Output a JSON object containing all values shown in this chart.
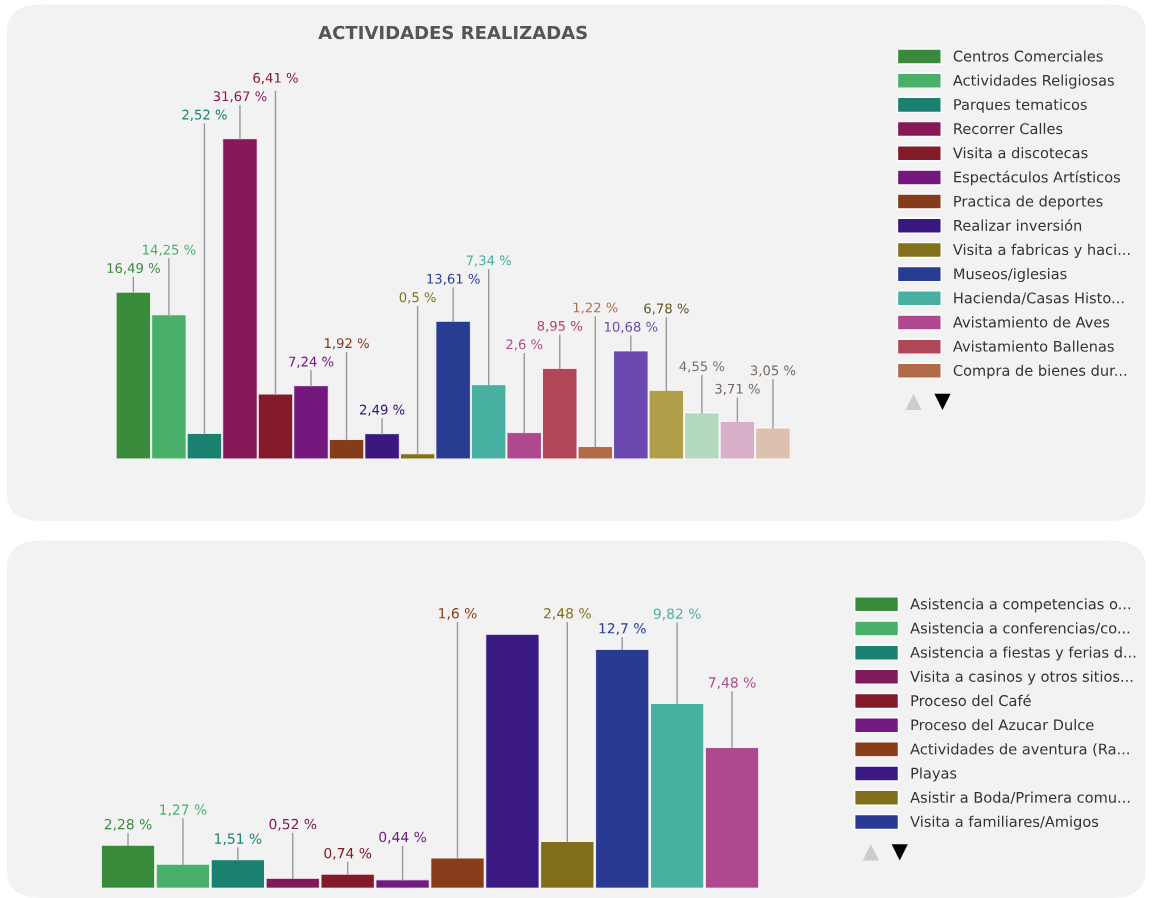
{
  "chart_data": [
    {
      "type": "bar",
      "title": "ACTIVIDADES REALIZADAS",
      "categories": [
        null
      ],
      "legend": "right",
      "series": [
        {
          "name": "Centros Comerciales",
          "color": "#3a8a3c",
          "values": [
            16.49
          ],
          "value_labels": [
            "16,49 %"
          ]
        },
        {
          "name": "Actividades Religiosas",
          "color": "#48b068",
          "values": [
            14.25
          ],
          "value_labels": [
            "14,25 %"
          ]
        },
        {
          "name": "Parques tematicos",
          "color": "#1a8070",
          "values": [
            2.52
          ],
          "value_labels": [
            "2,52 %"
          ]
        },
        {
          "name": "Recorrer Calles",
          "color": "#861858",
          "values": [
            31.67
          ],
          "value_labels": [
            "31,67 %"
          ]
        },
        {
          "name": "Visita a discotecas",
          "color": "#821a2a",
          "values": [
            6.41
          ],
          "value_labels": [
            "6,41 %"
          ]
        },
        {
          "name": "Espectáculos Artísticos",
          "color": "#74187e",
          "values": [
            7.24
          ],
          "value_labels": [
            "7,24 %"
          ]
        },
        {
          "name": "Practica de deportes",
          "color": "#843c1a",
          "values": [
            1.92
          ],
          "value_labels": [
            "1,92 %"
          ]
        },
        {
          "name": "Realizar inversión",
          "color": "#3a1880",
          "values": [
            2.49
          ],
          "value_labels": [
            "2,49 %"
          ]
        },
        {
          "name": "Visita a fabricas y haci...",
          "color": "#82701a",
          "values": [
            0.5
          ],
          "value_labels": [
            "0,5 %"
          ]
        },
        {
          "name": "Museos/iglesias",
          "color": "#283c92",
          "values": [
            13.61
          ],
          "value_labels": [
            "13,61 %"
          ]
        },
        {
          "name": "Hacienda/Casas Histo...",
          "color": "#48b0a0",
          "values": [
            7.34
          ],
          "value_labels": [
            "7,34 %"
          ]
        },
        {
          "name": "Avistamiento de Aves",
          "color": "#b04890",
          "values": [
            2.6
          ],
          "value_labels": [
            "2,6 %"
          ]
        },
        {
          "name": "Avistamiento Ballenas",
          "color": "#b04658",
          "values": [
            8.95
          ],
          "value_labels": [
            "8,95 %"
          ]
        },
        {
          "name": "Compra de bienes dur...",
          "color": "#b06a48",
          "values": [
            1.22
          ],
          "value_labels": [
            "1,22 %"
          ]
        },
        {
          "color": "#6a48b0",
          "values": [
            10.68
          ],
          "value_labels": [
            "10,68 %"
          ]
        },
        {
          "color": "#b09e48",
          "values": [
            6.78
          ],
          "value_labels": [
            "6,78 %"
          ]
        },
        {
          "color": "#b3d9bf",
          "values": [
            4.55
          ],
          "value_labels": [
            "4,55 %"
          ]
        },
        {
          "color": "#d8afc8",
          "values": [
            3.71
          ],
          "value_labels": [
            "3,71 %"
          ]
        },
        {
          "color": "#dcc0b0",
          "values": [
            3.05
          ],
          "value_labels": [
            "3,05 %"
          ]
        }
      ]
    },
    {
      "type": "bar",
      "categories": [
        null
      ],
      "legend": "right",
      "series": [
        {
          "name": "Asistencia a competencias o...",
          "color": "#3a8a3c",
          "values": [
            2.28
          ],
          "value_labels": [
            "2,28 %"
          ]
        },
        {
          "name": "Asistencia a conferencias/co...",
          "color": "#48b068",
          "values": [
            1.27
          ],
          "value_labels": [
            "1,27 %"
          ]
        },
        {
          "name": "Asistencia a fiestas y ferias d...",
          "color": "#1a8070",
          "values": [
            1.51
          ],
          "value_labels": [
            "1,51 %"
          ]
        },
        {
          "name": "Visita a casinos y otros sitios...",
          "color": "#801a5a",
          "values": [
            0.52
          ],
          "value_labels": [
            "0,52 %"
          ]
        },
        {
          "name": "Proceso del Café",
          "color": "#821a2a",
          "values": [
            0.74
          ],
          "value_labels": [
            "0,74 %"
          ]
        },
        {
          "name": "Proceso del Azucar Dulce",
          "color": "#701a82",
          "values": [
            0.44
          ],
          "value_labels": [
            "0,44 %"
          ]
        },
        {
          "name": "Actividades de aventura (Ra...",
          "color": "#883c1a",
          "values": [
            1.6
          ],
          "value_labels": [
            "1,6 %"
          ]
        },
        {
          "name": "Playas",
          "color": "#3a1a82",
          "values": [
            13.5
          ],
          "value_labels": [
            null
          ]
        },
        {
          "name": "Asistir a Boda/Primera comu...",
          "color": "#806e1a",
          "values": [
            2.48
          ],
          "value_labels": [
            "2,48 %"
          ]
        },
        {
          "name": "Visita a familiares/Amigos",
          "color": "#2a3a92",
          "values": [
            12.7
          ],
          "value_labels": [
            "12,7 %"
          ]
        },
        {
          "color": "#48b0a0",
          "values": [
            9.82
          ],
          "value_labels": [
            "9,82 %"
          ]
        },
        {
          "color": "#b04890",
          "values": [
            7.48
          ],
          "value_labels": [
            "7,48 %"
          ]
        }
      ]
    }
  ]
}
